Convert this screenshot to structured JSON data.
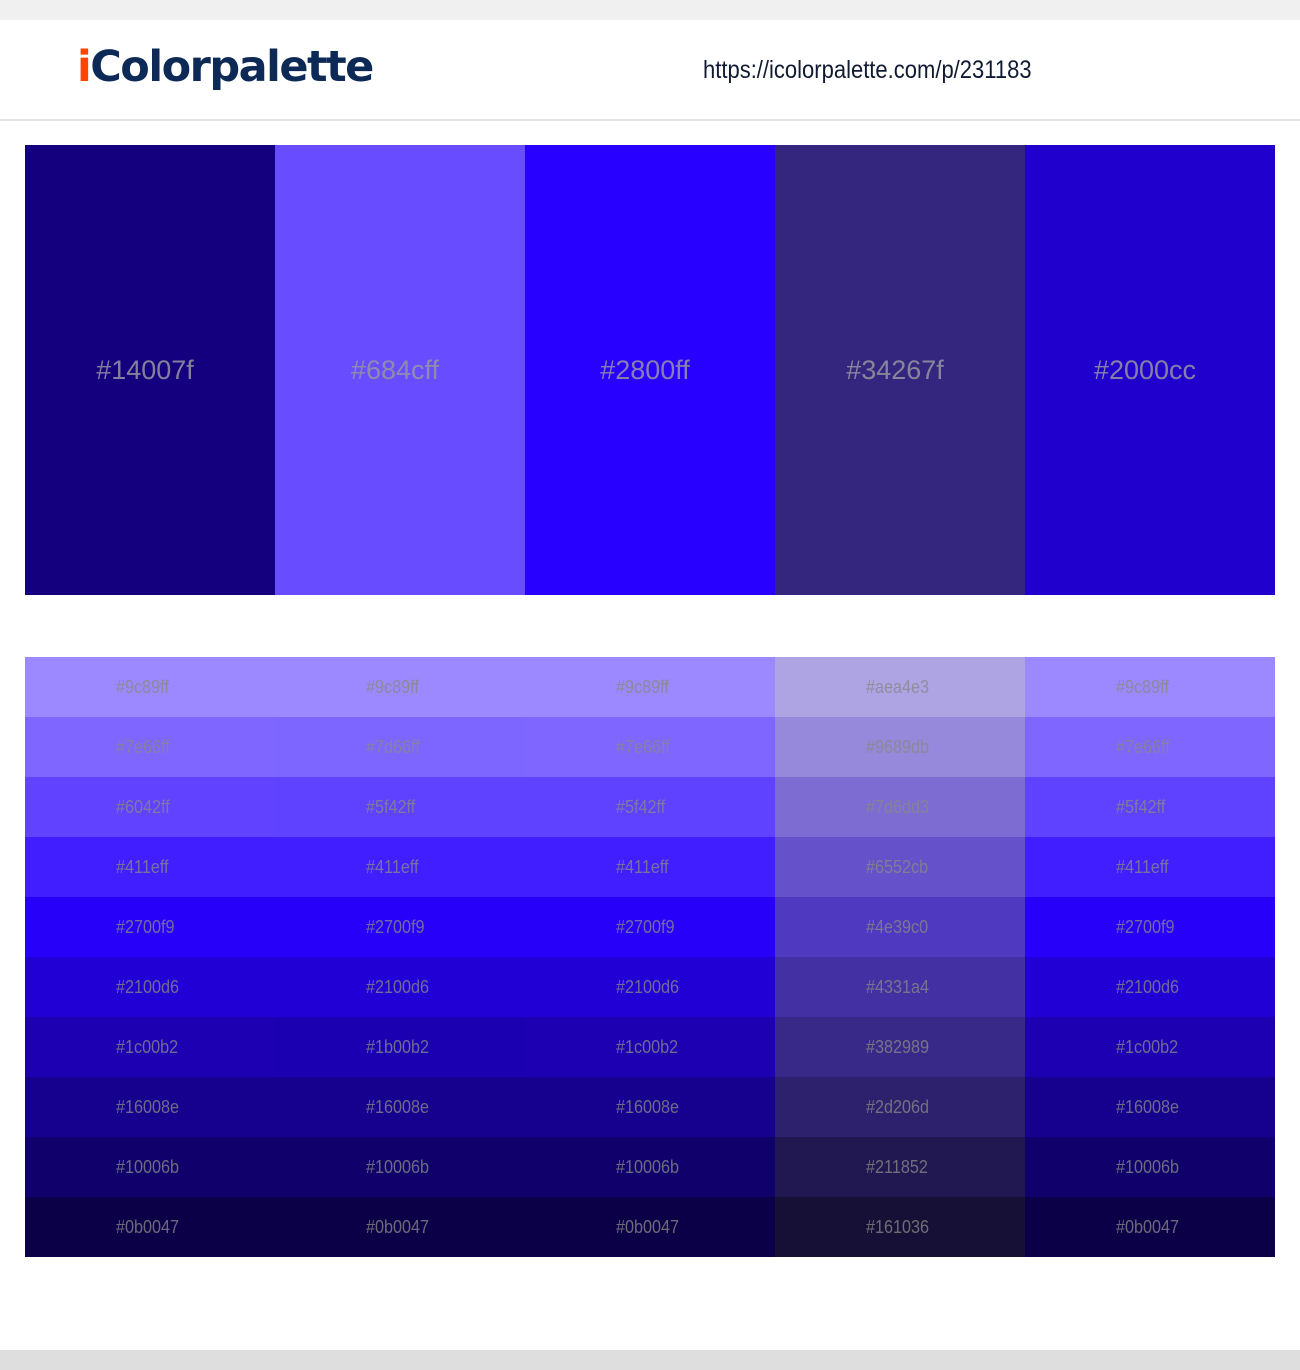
{
  "header": {
    "logo_prefix": "i",
    "logo_rest": "Colorpalette",
    "url": "https://icolorpalette.com/p/231183"
  },
  "palette": [
    "#14007f",
    "#684cff",
    "#2800ff",
    "#34267f",
    "#2000cc"
  ],
  "shades": [
    [
      "#9c89ff",
      "#9c89ff",
      "#9c89ff",
      "#aea4e3",
      "#9c89ff"
    ],
    [
      "#7e66ff",
      "#7d66ff",
      "#7e66ff",
      "#9689db",
      "#7e66ff"
    ],
    [
      "#6042ff",
      "#5f42ff",
      "#5f42ff",
      "#7d6dd3",
      "#5f42ff"
    ],
    [
      "#411eff",
      "#411eff",
      "#411eff",
      "#6552cb",
      "#411eff"
    ],
    [
      "#2700f9",
      "#2700f9",
      "#2700f9",
      "#4e39c0",
      "#2700f9"
    ],
    [
      "#2100d6",
      "#2100d6",
      "#2100d6",
      "#4331a4",
      "#2100d6"
    ],
    [
      "#1c00b2",
      "#1b00b2",
      "#1c00b2",
      "#382989",
      "#1c00b2"
    ],
    [
      "#16008e",
      "#16008e",
      "#16008e",
      "#2d206d",
      "#16008e"
    ],
    [
      "#10006b",
      "#10006b",
      "#10006b",
      "#211852",
      "#10006b"
    ],
    [
      "#0b0047",
      "#0b0047",
      "#0b0047",
      "#161036",
      "#0b0047"
    ]
  ]
}
